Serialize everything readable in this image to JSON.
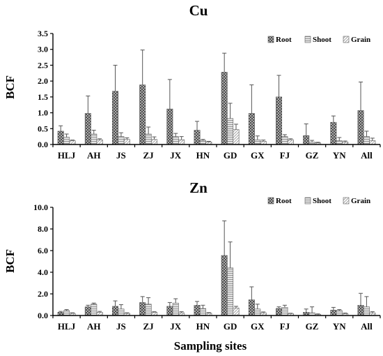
{
  "xlabel": "Sampling sites",
  "chart_data": [
    {
      "type": "bar",
      "title": "Cu",
      "xlabel": "",
      "ylabel": "BCF",
      "ylim": [
        0,
        3.5
      ],
      "yticks": [
        "0.0",
        "0.5",
        "1.0",
        "1.5",
        "2.0",
        "2.5",
        "3.0",
        "3.5"
      ],
      "grid": false,
      "legend_position": "top-right",
      "categories": [
        "HLJ",
        "AH",
        "JS",
        "ZJ",
        "JX",
        "HN",
        "GD",
        "GX",
        "FJ",
        "GZ",
        "YN",
        "All"
      ],
      "series": [
        {
          "name": "Root",
          "values": [
            0.42,
            0.98,
            1.68,
            1.88,
            1.12,
            0.45,
            2.28,
            0.98,
            1.5,
            0.28,
            0.7,
            1.07
          ],
          "errors": [
            0.17,
            0.55,
            0.82,
            1.1,
            0.93,
            0.28,
            0.6,
            0.9,
            0.68,
            0.37,
            0.2,
            0.9
          ]
        },
        {
          "name": "Shoot",
          "values": [
            0.23,
            0.33,
            0.25,
            0.33,
            0.25,
            0.13,
            0.82,
            0.15,
            0.25,
            0.08,
            0.12,
            0.25
          ],
          "errors": [
            0.1,
            0.12,
            0.12,
            0.22,
            0.1,
            0.03,
            0.48,
            0.12,
            0.06,
            0.05,
            0.1,
            0.17
          ]
        },
        {
          "name": "Grain",
          "values": [
            0.12,
            0.15,
            0.16,
            0.16,
            0.15,
            0.08,
            0.47,
            0.1,
            0.15,
            0.05,
            0.08,
            0.12
          ],
          "errors": [
            0.02,
            0.03,
            0.05,
            0.08,
            0.1,
            0.02,
            0.17,
            0.04,
            0.03,
            0.02,
            0.03,
            0.08
          ]
        }
      ]
    },
    {
      "type": "bar",
      "title": "Zn",
      "xlabel": "Sampling sites",
      "ylabel": "BCF",
      "ylim": [
        0,
        10
      ],
      "yticks": [
        "0.0",
        "2.0",
        "4.0",
        "6.0",
        "8.0",
        "10.0"
      ],
      "grid": false,
      "legend_position": "top-right",
      "categories": [
        "HLJ",
        "AH",
        "JS",
        "ZJ",
        "JX",
        "HN",
        "GD",
        "GX",
        "FJ",
        "GZ",
        "YN",
        "All"
      ],
      "series": [
        {
          "name": "Root",
          "values": [
            0.3,
            0.8,
            0.85,
            1.2,
            0.85,
            0.95,
            5.55,
            1.45,
            0.65,
            0.3,
            0.5,
            0.95
          ],
          "errors": [
            0.08,
            0.15,
            0.5,
            0.55,
            0.35,
            0.35,
            3.2,
            1.2,
            0.15,
            0.3,
            0.25,
            1.1
          ]
        },
        {
          "name": "Shoot",
          "values": [
            0.45,
            1.05,
            0.6,
            1.05,
            1.15,
            0.65,
            4.4,
            0.6,
            0.75,
            0.25,
            0.45,
            0.8
          ],
          "errors": [
            0.1,
            0.1,
            0.4,
            0.6,
            0.4,
            0.3,
            2.4,
            0.45,
            0.2,
            0.55,
            0.1,
            0.95
          ]
        },
        {
          "name": "Grain",
          "values": [
            0.2,
            0.3,
            0.2,
            0.3,
            0.25,
            0.22,
            0.7,
            0.25,
            0.18,
            0.1,
            0.18,
            0.25
          ],
          "errors": [
            0.05,
            0.08,
            0.05,
            0.05,
            0.1,
            0.05,
            0.15,
            0.08,
            0.03,
            0.05,
            0.05,
            0.1
          ]
        }
      ]
    }
  ]
}
